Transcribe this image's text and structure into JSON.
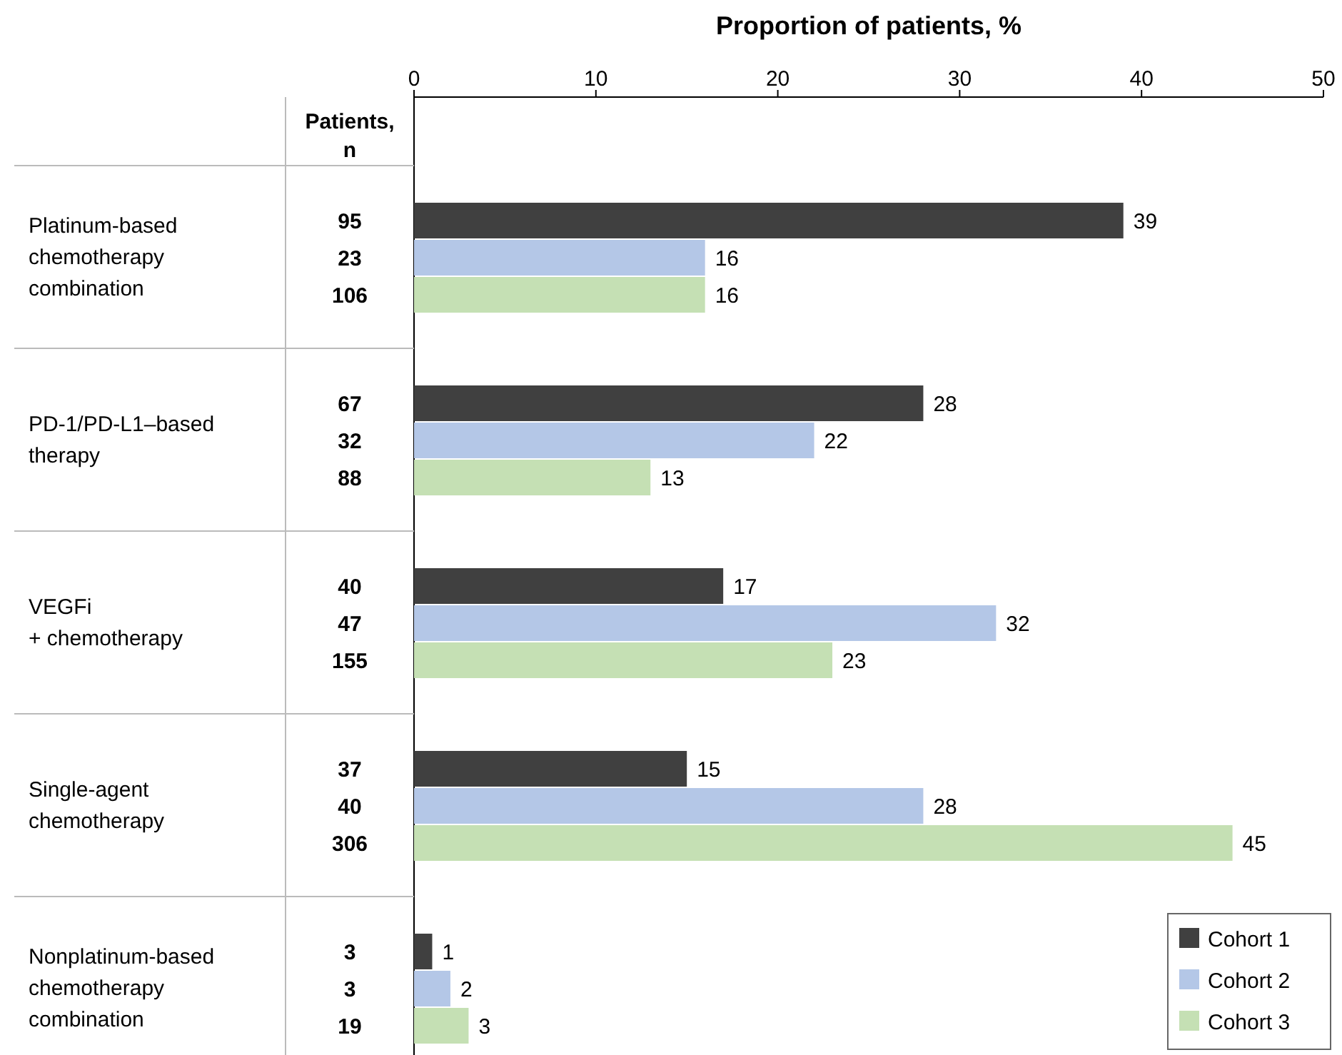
{
  "chart_data": {
    "type": "bar",
    "orientation": "horizontal",
    "x2label": "Proportion of patients, %",
    "categories": [
      "Platinum-based chemotherapy combination",
      "PD-1/PD-L1–based therapy",
      "VEGFi + chemotherapy",
      "Single-agent chemotherapy",
      "Nonplatinum-based chemotherapy combination"
    ],
    "series": [
      {
        "name": "Cohort 1",
        "color": "#404040",
        "values": [
          39,
          28,
          17,
          15,
          1
        ]
      },
      {
        "name": "Cohort 2",
        "color": "#b4c7e7",
        "values": [
          16,
          22,
          32,
          28,
          2
        ]
      },
      {
        "name": "Cohort 3",
        "color": "#c5e0b4",
        "values": [
          16,
          13,
          23,
          45,
          3
        ]
      }
    ],
    "xlim": [
      0,
      50
    ],
    "x2lim": [
      0,
      50
    ],
    "x2ticks": [
      0,
      10,
      20,
      30,
      40,
      50
    ],
    "data_labels": true,
    "legend": "bottom right",
    "annotations": [
      "Patients, n",
      "95",
      "23",
      "106",
      "67",
      "32",
      "88",
      "40",
      "47",
      "155",
      "37",
      "40",
      "306",
      "3",
      "3",
      "19"
    ]
  }
}
